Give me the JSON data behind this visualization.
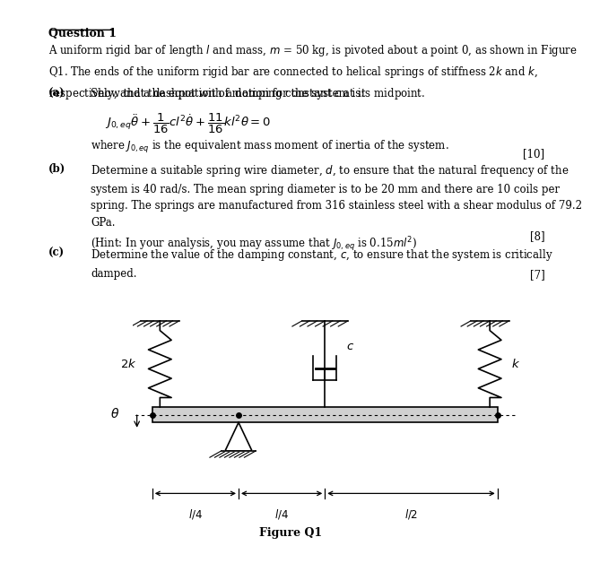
{
  "title": "Question 1",
  "bg_color": "#ffffff",
  "text_color": "#000000",
  "fig_width": 6.29,
  "fig_height": 6.09,
  "intro_text": "A uniform rigid bar of length $l$ and mass, $m$ = 50 kg, is pivoted about a point 0, as shown in Figure\nQ1. The ends of the uniform rigid bar are connected to helical springs of stiffness 2$k$ and $k$,\nrespectively, and a dashpot with a damping constant $c$ at its midpoint.",
  "part_a_label": "(a)",
  "part_a_text": "Show that the equation of motion for the system is:",
  "eq_note": "where $J_{0,eq}$ is the equivalent mass moment of inertia of the system.",
  "marks_a": "[10]",
  "part_b_label": "(b)",
  "part_b_text": "Determine a suitable spring wire diameter, $d$, to ensure that the natural frequency of the\nsystem is 40 rad/s. The mean spring diameter is to be 20 mm and there are 10 coils per\nspring. The springs are manufactured from 316 stainless steel with a shear modulus of 79.2\nGPa.\n(Hint: In your analysis, you may assume that $J_{0,eq}$ is 0.15$ml^2$)",
  "marks_b": "[8]",
  "part_c_label": "(c)",
  "part_c_text": "Determine the value of the damping constant, $c$, to ensure that the system is critically\ndamped.",
  "marks_c": "[7]",
  "fig_caption": "Figure Q1"
}
